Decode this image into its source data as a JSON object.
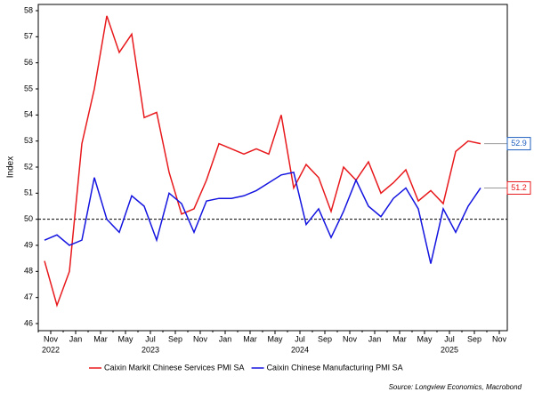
{
  "chart_data": {
    "type": "line",
    "y_label": "Index",
    "categories": [
      null,
      "Nov",
      null,
      "Jan",
      null,
      "Mar",
      null,
      "May",
      null,
      "Jul",
      null,
      "Sep",
      null,
      "Nov",
      null,
      "Jan",
      null,
      "Mar",
      null,
      "May",
      null,
      "Jul",
      null,
      "Sep",
      null,
      "Nov",
      null,
      "Jan",
      null,
      "Mar",
      null,
      "May",
      null,
      "Jul",
      null,
      "Sep",
      null,
      "Nov"
    ],
    "years": [
      null,
      "2022",
      null,
      null,
      null,
      null,
      null,
      null,
      null,
      "2023",
      null,
      null,
      null,
      null,
      null,
      null,
      null,
      null,
      null,
      null,
      null,
      "2024",
      null,
      null,
      null,
      null,
      null,
      null,
      null,
      null,
      null,
      null,
      null,
      "2025",
      null,
      null,
      null,
      null
    ],
    "series": [
      {
        "name": "Caixin Markit Chinese Services PMI SA",
        "color": "#e8191c",
        "label_color": "#1f5fbf",
        "values": [
          48.4,
          46.7,
          48.0,
          52.9,
          55.0,
          57.8,
          56.4,
          57.1,
          53.9,
          54.1,
          51.8,
          50.2,
          50.4,
          51.5,
          52.9,
          52.7,
          52.5,
          52.7,
          52.5,
          54.0,
          51.2,
          52.1,
          51.6,
          50.3,
          52.0,
          51.5,
          52.2,
          51.0,
          51.4,
          51.9,
          50.7,
          51.1,
          50.6,
          52.6,
          53.0,
          52.9,
          null,
          null
        ]
      },
      {
        "name": "Caixin Chinese Manufacturing PMI SA",
        "color": "#1414e0",
        "label_color": "#e8191c",
        "values": [
          49.2,
          49.4,
          49.0,
          49.2,
          51.6,
          50.0,
          49.5,
          50.9,
          50.5,
          49.2,
          51.0,
          50.6,
          49.5,
          50.7,
          50.8,
          50.8,
          50.9,
          51.1,
          51.4,
          51.7,
          51.8,
          49.8,
          50.4,
          49.3,
          50.3,
          51.5,
          50.5,
          50.1,
          50.8,
          51.2,
          50.4,
          48.3,
          50.4,
          49.5,
          50.5,
          51.2,
          null,
          null
        ]
      }
    ],
    "ylim": [
      46,
      58
    ],
    "yticks": [
      46,
      47,
      48,
      49,
      50,
      51,
      52,
      53,
      54,
      55,
      56,
      57,
      58
    ],
    "reference_line": 50,
    "grid": false,
    "source": "Source: Longview Economics, Macrobond"
  }
}
